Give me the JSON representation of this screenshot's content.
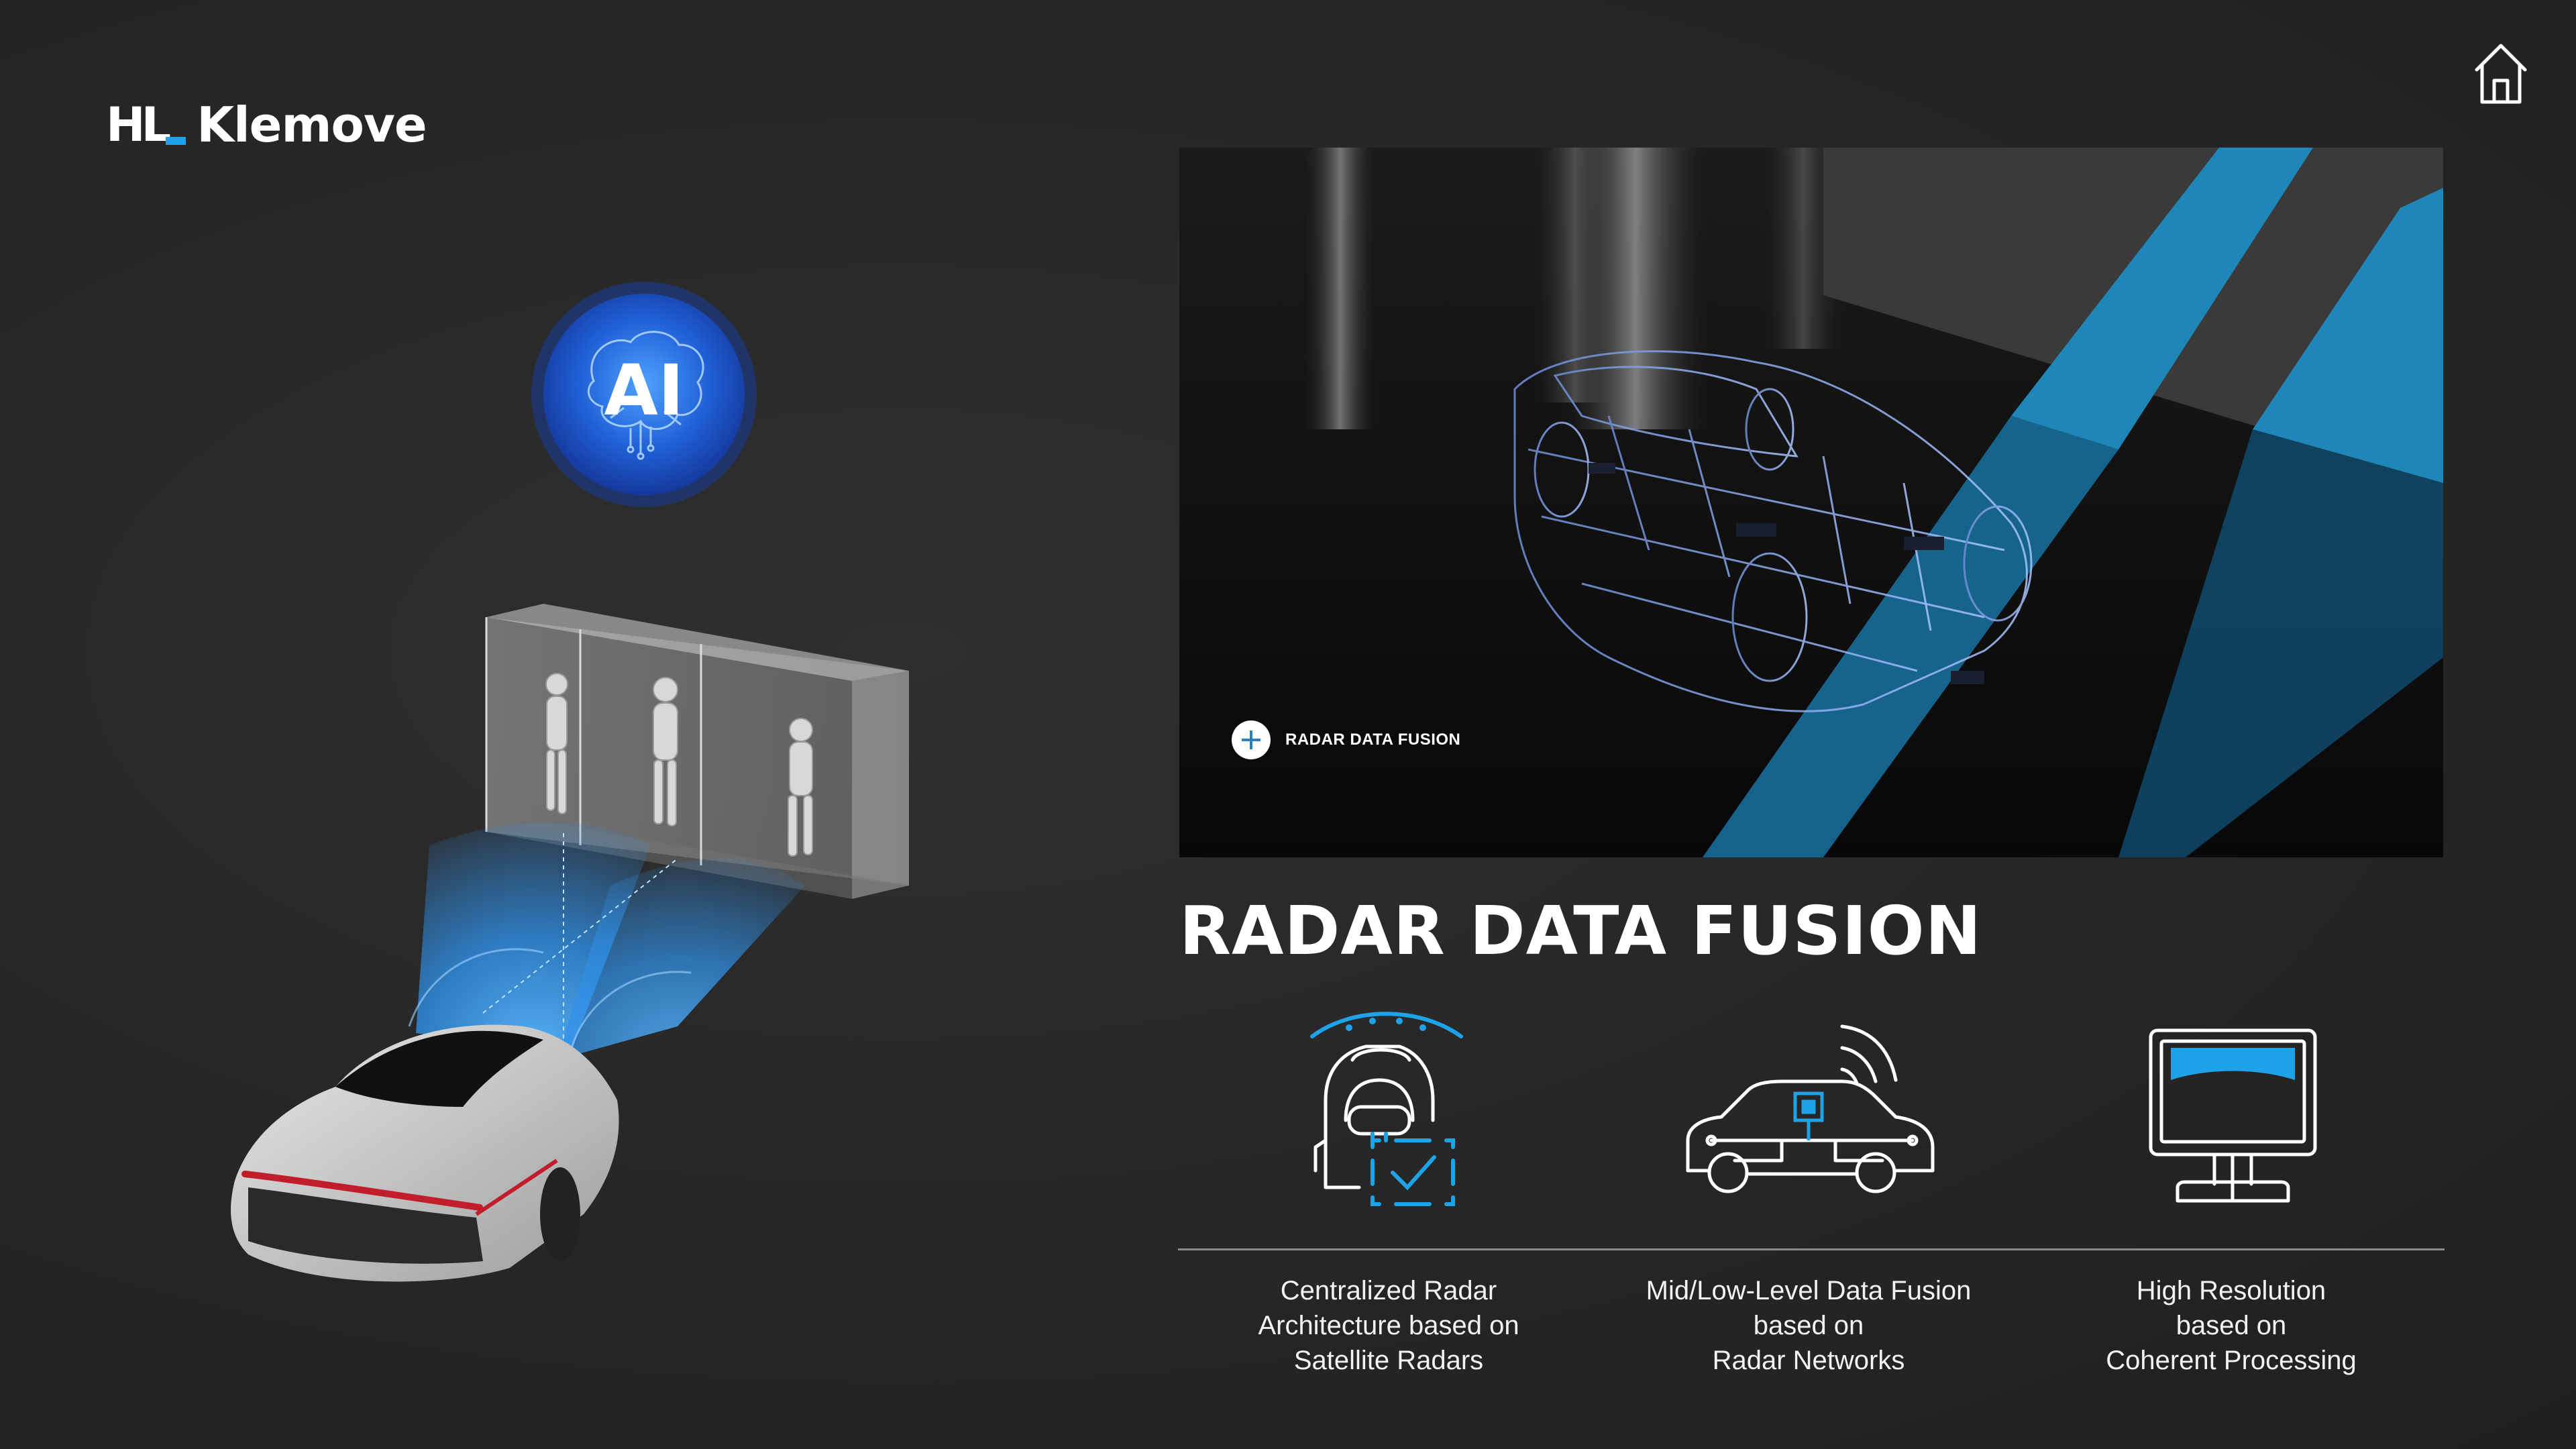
{
  "brand": {
    "mark": "HL",
    "name": "Klemove"
  },
  "ai_badge": {
    "label": "AI"
  },
  "video": {
    "hotspot_label": "RADAR DATA FUSION"
  },
  "section": {
    "title": "RADAR DATA FUSION"
  },
  "features": [
    {
      "icon": "centralized-radar-icon",
      "lines": [
        "Centralized Radar",
        "Architecture based on",
        "Satellite Radars"
      ]
    },
    {
      "icon": "car-radar-network-icon",
      "lines": [
        "Mid/Low-Level Data Fusion",
        "based on",
        "Radar Networks"
      ]
    },
    {
      "icon": "monitor-icon",
      "lines": [
        "High Resolution",
        "based on",
        "Coherent Processing"
      ]
    }
  ],
  "colors": {
    "accent": "#1fa3e8",
    "background": "#262626",
    "radar_blue": "#2f8fe6"
  }
}
